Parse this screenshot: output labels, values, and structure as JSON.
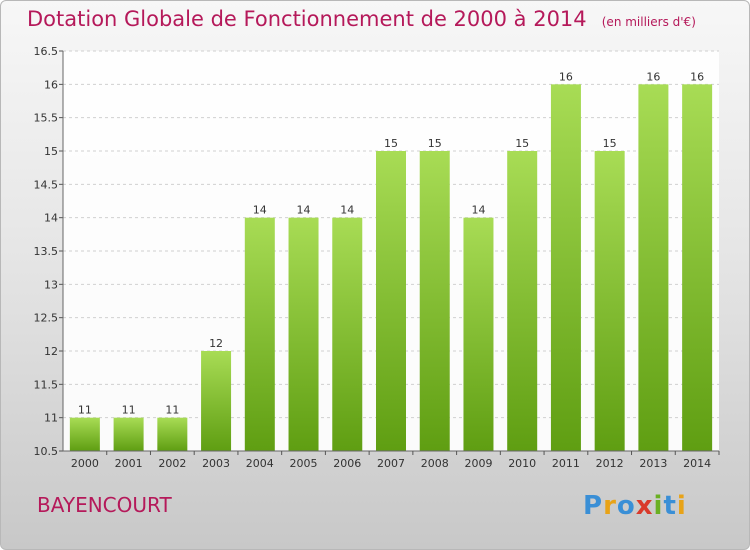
{
  "title": "Dotation Globale de Fonctionnement de 2000 à 2014",
  "subtitle": "(en milliers d'€)",
  "place": "BAYENCOURT",
  "logo": {
    "letters": [
      "P",
      "r",
      "o",
      "x",
      "i",
      "t",
      "i"
    ],
    "colors": [
      "#3a8fd6",
      "#e8a317",
      "#3a8fd6",
      "#d93a2b",
      "#6ab023",
      "#3a8fd6",
      "#e8a317"
    ]
  },
  "colors": {
    "title": "#b5195a",
    "bar_top": "#a8dc55",
    "bar_bottom": "#5f9e12"
  },
  "chart_data": {
    "type": "bar",
    "title": "Dotation Globale de Fonctionnement de 2000 à 2014",
    "subtitle": "(en milliers d'€)",
    "xlabel": "",
    "ylabel": "",
    "categories": [
      "2000",
      "2001",
      "2002",
      "2003",
      "2004",
      "2005",
      "2006",
      "2007",
      "2008",
      "2009",
      "2010",
      "2011",
      "2012",
      "2013",
      "2014"
    ],
    "values": [
      11,
      11,
      11,
      12,
      14,
      14,
      14,
      15,
      15,
      14,
      15,
      16,
      15,
      16,
      16
    ],
    "ylim": [
      10.5,
      16.5
    ],
    "yticks": [
      "10.5",
      "11",
      "11.5",
      "12",
      "12.5",
      "13",
      "13.5",
      "14",
      "14.5",
      "15",
      "15.5",
      "16",
      "16.5"
    ],
    "grid": true,
    "legend": "none"
  }
}
